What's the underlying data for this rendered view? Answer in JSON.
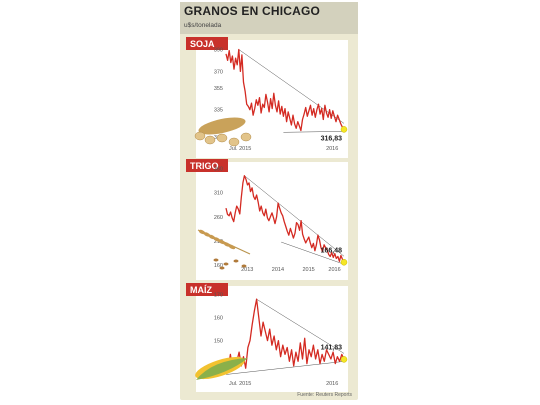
{
  "header": {
    "title": "GRANOS EN CHICAGO",
    "subtitle": "u$s/tonelada",
    "source": "Fuente: Reuters Reports"
  },
  "colors": {
    "header_bg": "#d3d1bd",
    "panel_bg": "#ece9d2",
    "chart_bg": "#ffffff",
    "label_bg": "#c8312b",
    "line": "#d42a22",
    "trend": "#555555",
    "marker": "#f5e625"
  },
  "chart_data": [
    {
      "type": "line",
      "label": "SOJA",
      "yticks": [
        310,
        335,
        355,
        370,
        390
      ],
      "ylim": [
        300,
        395
      ],
      "xticks": [
        "Jul. 2015",
        "2016"
      ],
      "last_value_label": "316,83",
      "icon": "soybean-icon",
      "series": [
        {
          "values": [
            386,
            380,
            389,
            378,
            384,
            372,
            382,
            376,
            390,
            370,
            385,
            360,
            352,
            340,
            338,
            335,
            341,
            330,
            336,
            344,
            339,
            346,
            332,
            340,
            337,
            349,
            342,
            333,
            345,
            336,
            350,
            339,
            333,
            343,
            331,
            338,
            329,
            336,
            324,
            333,
            327,
            321,
            330,
            322,
            318,
            324,
            320,
            316,
            326,
            331,
            337,
            329,
            334,
            339,
            330,
            336,
            328,
            335,
            340,
            331,
            336,
            326,
            339,
            332,
            328,
            335,
            327,
            334,
            329,
            324,
            330,
            326,
            322,
            319,
            317
          ]
        }
      ]
    },
    {
      "type": "line",
      "label": "TRIGO",
      "yticks": [
        160,
        210,
        260,
        310,
        360
      ],
      "ylim": [
        150,
        365
      ],
      "xticks": [
        "2013",
        "2014",
        "2015",
        "2016"
      ],
      "last_value_label": "166,48",
      "icon": "wheat-icon",
      "series": [
        {
          "values": [
            278,
            265,
            262,
            270,
            258,
            250,
            268,
            282,
            276,
            266,
            300,
            330,
            345,
            338,
            326,
            330,
            312,
            320,
            302,
            296,
            305,
            290,
            272,
            282,
            268,
            262,
            276,
            258,
            252,
            260,
            268,
            258,
            246,
            260,
            288,
            278,
            268,
            262,
            250,
            240,
            230,
            222,
            236,
            226,
            216,
            226,
            248,
            244,
            232,
            252,
            224,
            214,
            206,
            212,
            218,
            206,
            196,
            205,
            190,
            202,
            222,
            212,
            196,
            188,
            202,
            196,
            192,
            182,
            178,
            186,
            176,
            184,
            174,
            178,
            168,
            180,
            172,
            166
          ]
        }
      ]
    },
    {
      "type": "line",
      "label": "MAÍZ",
      "yticks": [
        140,
        150,
        160,
        170
      ],
      "ylim": [
        132,
        172
      ],
      "xticks": [
        "Jul. 2015",
        "2016"
      ],
      "last_value_label": "141,83",
      "icon": "corn-icon",
      "series": [
        {
          "values": [
            140,
            138,
            144,
            137,
            142,
            141,
            145,
            139,
            143,
            138,
            147,
            150,
            157,
            163,
            168,
            160,
            152,
            158,
            154,
            150,
            155,
            148,
            152,
            146,
            150,
            143,
            148,
            144,
            147,
            141,
            146,
            139,
            145,
            141,
            149,
            142,
            151,
            140,
            146,
            143,
            148,
            142,
            146,
            140,
            144,
            141,
            146,
            144,
            142,
            145,
            140,
            143,
            141,
            144,
            141.83
          ]
        }
      ]
    }
  ]
}
